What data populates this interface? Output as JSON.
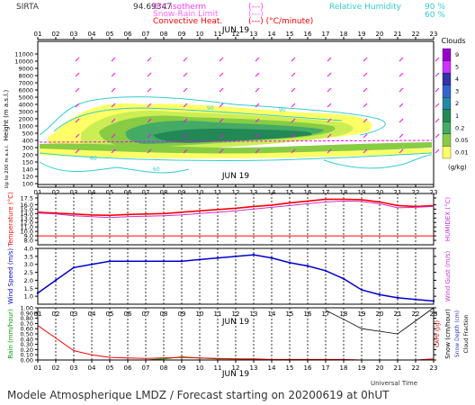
{
  "header": {
    "station": "SIRTA",
    "coords": "94.69347",
    "legend": [
      {
        "label": "0°C isotherm",
        "sym": "(---)",
        "color": "#ff33ff"
      },
      {
        "label": "Snow-Rain Limit",
        "sym": "(---)",
        "color": "#ff66ff"
      },
      {
        "label": "Convective Heat.",
        "sym": "(---) (°C/minute)",
        "color": "#ff0000"
      }
    ],
    "rh_label": "Relative Humidity",
    "rh_values": [
      "90 %",
      "60 %"
    ],
    "rh_color": "#33cccc"
  },
  "date_label": "JUN 19",
  "hours": [
    "01",
    "02",
    "03",
    "04",
    "05",
    "06",
    "07",
    "08",
    "09",
    "10",
    "11",
    "12",
    "13",
    "14",
    "15",
    "16",
    "17",
    "18",
    "19",
    "20",
    "21",
    "22",
    "23"
  ],
  "footer": {
    "utc": "Universal Time",
    "title": "Modele Atmospherique LMDZ / Forecast starting on 20200619 at 0hUT"
  },
  "colors": {
    "accent": "#ff00ff",
    "temp": "#ff0000",
    "humidex": "#cc33cc",
    "wind": "#0000cc",
    "gust": "#000000",
    "rain": "#009900",
    "snow": "#000000"
  },
  "chart_data": [
    {
      "type": "heatmap",
      "ylabel": "Height (m a.s.l.)",
      "ylabel2": "Up to 200 m a.s.l.",
      "yticks": [
        "11000",
        "10000",
        "9000",
        "8000",
        "7000",
        "6000",
        "5000",
        "4000",
        "3000",
        "2000",
        "1000",
        "500",
        "400",
        "300",
        "200",
        "150",
        "140",
        "120",
        "100"
      ],
      "colorbar": {
        "title": "Clouds",
        "unit": "(g/kg)",
        "ticks": [
          "9",
          "5",
          "4",
          "3",
          "2",
          "1",
          "0.2",
          "0.05",
          "0.01"
        ]
      },
      "rh_contour_labels": [
        "90",
        "90",
        "60",
        "60"
      ]
    },
    {
      "type": "line",
      "ylabel": "Temperature (°C)",
      "ylabel2": "HUMIDEX (°C)",
      "yticks": [
        "17.5",
        "16.0",
        "15.0",
        "14.0",
        "13.0",
        "12.0",
        "11.0",
        "10.0",
        "9.0",
        "8.0"
      ],
      "ylim": [
        7,
        18.5
      ],
      "reference_line": 9.0,
      "series": [
        {
          "name": "Temperature",
          "values": [
            14.3,
            14.1,
            13.9,
            13.7,
            13.6,
            13.8,
            13.9,
            14.0,
            14.3,
            14.6,
            14.9,
            15.2,
            15.6,
            15.9,
            16.4,
            16.8,
            17.2,
            17.2,
            17.1,
            16.6,
            15.8,
            15.6,
            15.8
          ]
        },
        {
          "name": "HUMIDEX",
          "values": [
            14.1,
            13.9,
            13.5,
            13.3,
            13.1,
            13.3,
            13.4,
            13.5,
            13.7,
            14.0,
            14.3,
            14.6,
            15.0,
            15.4,
            15.8,
            16.2,
            16.6,
            16.8,
            16.7,
            16.2,
            15.3,
            15.4,
            15.6
          ]
        }
      ]
    },
    {
      "type": "line",
      "ylabel": "Wind Speed (m/s)",
      "ylabel2": "Wind Gust (m/s)",
      "yticks": [
        "4.0",
        "3.5",
        "3.0",
        "2.5",
        "2.0",
        "1.5",
        "1.0"
      ],
      "ylim": [
        0.5,
        4.0
      ],
      "series": [
        {
          "name": "Wind Speed",
          "values": [
            1.2,
            2.0,
            2.8,
            3.0,
            3.2,
            3.2,
            3.2,
            3.2,
            3.2,
            3.3,
            3.4,
            3.5,
            3.6,
            3.4,
            3.1,
            2.9,
            2.6,
            2.1,
            1.4,
            1.1,
            0.9,
            0.8,
            0.7
          ]
        }
      ]
    },
    {
      "type": "line",
      "ylabel": "Rain (mm/hour)",
      "ylabel2": "Snow (cm/hour)",
      "ylabel3": "CAPE (J/g)",
      "ylabel4": "Snow Depth (cm)",
      "ylabel5": "Cloud Fraction",
      "yticks": [
        "1.00",
        "0.90",
        "0.80",
        "0.70",
        "0.60",
        "0.50",
        "0.40",
        "0.30",
        "0.20",
        "0.10",
        "0.00"
      ],
      "ylim": [
        0,
        1
      ],
      "series": [
        {
          "name": "Rain",
          "values": [
            0.0,
            0.0,
            0.0,
            0.0,
            0.0,
            0.0,
            0.0,
            0.02,
            0.06,
            0.04,
            0.02,
            0.02,
            0.01,
            0.0,
            0.0,
            0.0,
            0.0,
            0.0,
            0.0,
            0.0,
            0.0,
            0.0,
            0.0
          ]
        },
        {
          "name": "CAPE",
          "values": [
            0.66,
            0.42,
            0.18,
            0.1,
            0.05,
            0.04,
            0.03,
            0.04,
            0.05,
            0.04,
            0.03,
            0.02,
            0.02,
            0.01,
            0.01,
            0.01,
            0.01,
            0.01,
            0.0,
            0.0,
            0.0,
            0.0,
            0.02
          ]
        },
        {
          "name": "Cloud Fraction",
          "values": [
            null,
            null,
            null,
            null,
            null,
            null,
            null,
            null,
            null,
            null,
            null,
            null,
            null,
            null,
            null,
            null,
            0.95,
            0.78,
            0.6,
            0.55,
            0.5,
            0.75,
            1.0
          ]
        }
      ]
    }
  ]
}
